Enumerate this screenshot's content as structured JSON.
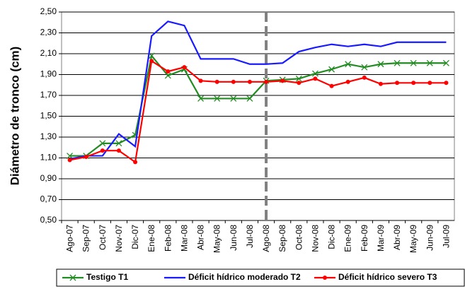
{
  "chart_data": {
    "type": "line",
    "y_label": "Diámetro de tronco (cm)",
    "categories": [
      "Ago-07",
      "Sep-07",
      "Oct-07",
      "Nov-07",
      "Dic-07",
      "Ene-08",
      "Feb-08",
      "Mar-08",
      "Abr-08",
      "May-08",
      "Jun-08",
      "Jul-08",
      "Ago-08",
      "Sep-08",
      "Oct-08",
      "Nov-08",
      "Dic-08",
      "Ene-09",
      "Feb-09",
      "Mar-09",
      "Abr-09",
      "May-09",
      "Jun-09",
      "Jul-09"
    ],
    "series": [
      {
        "name": "Testigo T1",
        "color": "#228b22",
        "marker": "x",
        "values": [
          1.12,
          1.12,
          1.24,
          1.24,
          1.32,
          2.08,
          1.89,
          1.95,
          1.67,
          1.67,
          1.67,
          1.67,
          1.84,
          1.85,
          1.86,
          1.91,
          1.95,
          2.0,
          1.97,
          2.0,
          2.01,
          2.01,
          2.01,
          2.01
        ]
      },
      {
        "name": "Déficit hídrico moderado T2",
        "color": "#1a1aff",
        "marker": "none",
        "values": [
          1.09,
          1.12,
          1.12,
          1.33,
          1.21,
          2.27,
          2.41,
          2.37,
          2.05,
          2.05,
          2.05,
          2.0,
          2.0,
          2.01,
          2.12,
          2.16,
          2.19,
          2.17,
          2.19,
          2.17,
          2.21,
          2.21,
          2.21,
          2.21
        ]
      },
      {
        "name": "Déficit hídrico severo T3",
        "color": "#ff0000",
        "marker": "circle",
        "values": [
          1.08,
          1.11,
          1.17,
          1.17,
          1.06,
          2.03,
          1.93,
          1.97,
          1.84,
          1.83,
          1.83,
          1.83,
          1.83,
          1.84,
          1.82,
          1.86,
          1.79,
          1.83,
          1.87,
          1.81,
          1.82,
          1.82,
          1.82,
          1.82
        ]
      }
    ],
    "ylim": [
      0.5,
      2.5
    ],
    "yticks": [
      {
        "value": 0.5,
        "label": "0,50"
      },
      {
        "value": 0.7,
        "label": "0,70"
      },
      {
        "value": 0.9,
        "label": "0,90"
      },
      {
        "value": 1.1,
        "label": "1,10"
      },
      {
        "value": 1.3,
        "label": "1,30"
      },
      {
        "value": 1.5,
        "label": "1,50"
      },
      {
        "value": 1.7,
        "label": "1,70"
      },
      {
        "value": 1.9,
        "label": "1,90"
      },
      {
        "value": 2.1,
        "label": "2,10"
      },
      {
        "value": 2.3,
        "label": "2,30"
      },
      {
        "value": 2.5,
        "label": "2,50"
      }
    ],
    "grid": true,
    "divider_category": "Ago-08",
    "legend": "bottom"
  }
}
